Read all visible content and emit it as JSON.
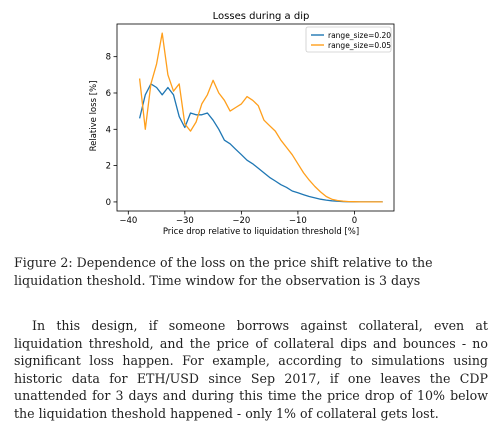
{
  "figure": {
    "caption": "Figure 2: Dependence of the loss on the price shift relative to the liquidation theshold. Time window for the observation is 3 days"
  },
  "paragraph": {
    "text": "In this design, if someone borrows against collateral, even at liquidation threshold, and the price of collateral dips and bounces - no significant loss happen. For example, according to simulations using historic data for ETH/USD since Sep 2017, if one leaves the CDP unattended for 3 days and during this time the price drop of 10% below the liquidation theshold happened - only 1% of collateral gets lost."
  },
  "chart_data": {
    "type": "line",
    "title": "Losses during a dip",
    "xlabel": "Price drop relative to liquidation threshold [%]",
    "ylabel": "Relative loss [%]",
    "xlim": [
      -42,
      7
    ],
    "ylim": [
      -0.5,
      9.8
    ],
    "xticks": [
      -40,
      -30,
      -20,
      -10,
      0
    ],
    "yticks": [
      0,
      2,
      4,
      6,
      8
    ],
    "grid": false,
    "legend_position": "top-right",
    "series": [
      {
        "name": "range_size=0.20",
        "color": "#1f77b4",
        "x": [
          -38,
          -37,
          -36,
          -35,
          -34,
          -33,
          -32,
          -31,
          -30,
          -29,
          -28,
          -27,
          -26,
          -25,
          -24,
          -23,
          -22,
          -21,
          -20,
          -19,
          -18,
          -17,
          -16,
          -15,
          -14,
          -13,
          -12,
          -11,
          -10,
          -9,
          -8,
          -7,
          -6,
          -5,
          -4,
          -3,
          -2,
          -1,
          0,
          1,
          2,
          3,
          4,
          5
        ],
        "y": [
          4.6,
          5.9,
          6.5,
          6.3,
          5.9,
          6.3,
          5.9,
          4.7,
          4.1,
          4.9,
          4.8,
          4.8,
          4.9,
          4.5,
          4.0,
          3.4,
          3.2,
          2.9,
          2.6,
          2.3,
          2.1,
          1.85,
          1.6,
          1.35,
          1.15,
          0.95,
          0.8,
          0.6,
          0.5,
          0.4,
          0.3,
          0.22,
          0.15,
          0.1,
          0.06,
          0.04,
          0.02,
          0.01,
          0.0,
          0.0,
          0.0,
          0.0,
          0.0,
          0.0
        ]
      },
      {
        "name": "range_size=0.05",
        "color": "#ff9f1c",
        "x": [
          -38,
          -37,
          -36,
          -35,
          -34,
          -33,
          -32,
          -31,
          -30,
          -29,
          -28,
          -27,
          -26,
          -25,
          -24,
          -23,
          -22,
          -21,
          -20,
          -19,
          -18,
          -17,
          -16,
          -15,
          -14,
          -13,
          -12,
          -11,
          -10,
          -9,
          -8,
          -7,
          -6,
          -5,
          -4,
          -3,
          -2,
          -1,
          0,
          1,
          2,
          3,
          4,
          5
        ],
        "y": [
          6.8,
          4.0,
          6.5,
          7.6,
          9.3,
          7.0,
          6.1,
          6.5,
          4.3,
          3.9,
          4.4,
          5.4,
          5.9,
          6.7,
          6.0,
          5.6,
          5.0,
          5.2,
          5.4,
          5.8,
          5.6,
          5.3,
          4.5,
          4.2,
          3.9,
          3.4,
          3.0,
          2.6,
          2.1,
          1.6,
          1.2,
          0.85,
          0.55,
          0.3,
          0.15,
          0.08,
          0.04,
          0.02,
          0.01,
          0.0,
          0.0,
          0.0,
          0.0,
          0.0
        ]
      }
    ]
  }
}
